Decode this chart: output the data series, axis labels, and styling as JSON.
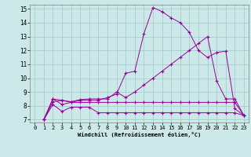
{
  "xlabel": "Windchill (Refroidissement éolien,°C)",
  "x_ticks": [
    0,
    1,
    2,
    3,
    4,
    5,
    6,
    7,
    8,
    9,
    10,
    11,
    12,
    13,
    14,
    15,
    16,
    17,
    18,
    19,
    20,
    21,
    22,
    23
  ],
  "y_ticks": [
    7,
    8,
    9,
    10,
    11,
    12,
    13,
    14,
    15
  ],
  "xlim": [
    -0.5,
    23.5
  ],
  "ylim": [
    6.8,
    15.3
  ],
  "bg_color": "#cce8e8",
  "line_color": "#990099",
  "line1_x": [
    1,
    2,
    3,
    4,
    5,
    6,
    7,
    8,
    9,
    10,
    11,
    12,
    13,
    14,
    15,
    16,
    17,
    18,
    19,
    20,
    21,
    22,
    23
  ],
  "line1_y": [
    7.0,
    8.5,
    8.1,
    8.25,
    8.25,
    8.25,
    8.25,
    8.25,
    8.25,
    8.25,
    8.25,
    8.25,
    8.25,
    8.25,
    8.25,
    8.25,
    8.25,
    8.25,
    8.25,
    8.25,
    8.25,
    8.25,
    7.3
  ],
  "line2_x": [
    1,
    2,
    3,
    4,
    5,
    6,
    7,
    8,
    9,
    10,
    11,
    12,
    13,
    14,
    15,
    16,
    17,
    18,
    19,
    20,
    21,
    22,
    23
  ],
  "line2_y": [
    7.0,
    8.1,
    7.6,
    7.9,
    7.9,
    7.9,
    7.5,
    7.5,
    7.5,
    7.5,
    7.5,
    7.5,
    7.5,
    7.5,
    7.5,
    7.5,
    7.5,
    7.5,
    7.5,
    7.5,
    7.5,
    7.5,
    7.3
  ],
  "line3_x": [
    1,
    2,
    3,
    4,
    5,
    6,
    7,
    8,
    9,
    10,
    11,
    12,
    13,
    14,
    15,
    16,
    17,
    18,
    19,
    20,
    21,
    22,
    23
  ],
  "line3_y": [
    7.0,
    8.5,
    8.4,
    8.25,
    8.4,
    8.4,
    8.4,
    8.6,
    8.85,
    10.35,
    10.5,
    13.2,
    15.1,
    14.8,
    14.35,
    14.0,
    13.3,
    12.0,
    11.5,
    11.85,
    11.95,
    7.8,
    7.3
  ],
  "line4_x": [
    1,
    2,
    3,
    4,
    5,
    6,
    7,
    8,
    9,
    10,
    11,
    12,
    13,
    14,
    15,
    16,
    17,
    18,
    19,
    20,
    21,
    22,
    23
  ],
  "line4_y": [
    7.0,
    8.3,
    8.4,
    8.3,
    8.45,
    8.5,
    8.5,
    8.5,
    9.0,
    8.6,
    9.0,
    9.5,
    10.0,
    10.5,
    11.0,
    11.5,
    12.0,
    12.5,
    13.0,
    9.8,
    8.5,
    8.5,
    7.3
  ]
}
